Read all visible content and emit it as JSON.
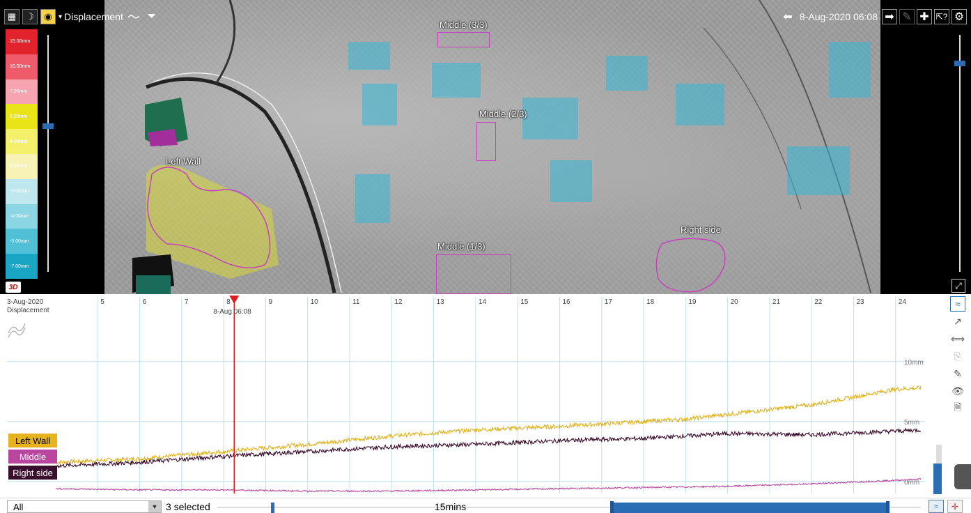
{
  "toolbar": {
    "layer_name": "Displacement",
    "dropdown_glyph": "▾",
    "date": "8-Aug-2020 06:08"
  },
  "legend": {
    "items": [
      {
        "label": "15.00mm",
        "color": "#e3232c"
      },
      {
        "label": "10.00mm",
        "color": "#f05b6b"
      },
      {
        "label": "7.00mm",
        "color": "#f7a3b0"
      },
      {
        "label": "5.00mm",
        "color": "#e9e418"
      },
      {
        "label": "4.00mm",
        "color": "#f4f06a"
      },
      {
        "label": "3.00mm",
        "color": "#f6f3b4"
      },
      {
        "label": "-3.00mm",
        "color": "#bfe7ef"
      },
      {
        "label": "-4.00mm",
        "color": "#8bd6e4"
      },
      {
        "label": "-5.00mm",
        "color": "#4fc0d6"
      },
      {
        "label": "-7.00mm",
        "color": "#19a5c3"
      }
    ]
  },
  "badge_3d": "3D",
  "regions": {
    "middle3": "Middle (3/3)",
    "middle2": "Middle (2/3)",
    "middle1": "Middle (1/3)",
    "left_wall": "Left Wall",
    "right_side": "Right side"
  },
  "chart_data": {
    "type": "line",
    "start_label": "3-Aug-2020",
    "quantity_label": "Displacement",
    "x_ticks": [
      "5",
      "6",
      "7",
      "8",
      "9",
      "10",
      "11",
      "12",
      "13",
      "14",
      "15",
      "16",
      "17",
      "18",
      "19",
      "20",
      "21",
      "22",
      "23",
      "24"
    ],
    "cursor_label": "8-Aug 06:08",
    "y_ticks": [
      "10mm",
      "5mm",
      "0mm"
    ],
    "ylim": [
      -1,
      14
    ],
    "x_range_days": [
      4.0,
      24.7
    ],
    "cursor_day": 8.25,
    "series": [
      {
        "name": "Left Wall",
        "color": "#e0b21b",
        "points": [
          [
            4,
            1.6
          ],
          [
            6,
            1.9
          ],
          [
            8,
            2.5
          ],
          [
            10,
            3.1
          ],
          [
            12,
            3.8
          ],
          [
            14,
            4.3
          ],
          [
            16,
            4.6
          ],
          [
            18,
            5.0
          ],
          [
            19,
            5.2
          ],
          [
            20,
            5.6
          ],
          [
            22,
            6.4
          ],
          [
            24,
            7.7
          ],
          [
            24.6,
            7.8
          ]
        ]
      },
      {
        "name": "Right side",
        "color": "#3a0f2e",
        "points": [
          [
            4,
            1.3
          ],
          [
            6,
            1.6
          ],
          [
            8,
            2.1
          ],
          [
            10,
            2.5
          ],
          [
            12,
            2.9
          ],
          [
            14,
            3.1
          ],
          [
            16,
            3.4
          ],
          [
            18,
            3.6
          ],
          [
            19,
            3.8
          ],
          [
            20,
            4.0
          ],
          [
            22,
            3.9
          ],
          [
            24,
            4.2
          ],
          [
            24.6,
            4.3
          ]
        ]
      },
      {
        "name": "Middle",
        "color": "#b9459e",
        "points": [
          [
            4,
            -0.6
          ],
          [
            6,
            -0.7
          ],
          [
            8,
            -0.7
          ],
          [
            10,
            -0.8
          ],
          [
            12,
            -0.8
          ],
          [
            14,
            -0.7
          ],
          [
            16,
            -0.6
          ],
          [
            18,
            -0.5
          ],
          [
            20,
            -0.4
          ],
          [
            22,
            -0.2
          ],
          [
            24,
            0.1
          ],
          [
            24.6,
            0.2
          ]
        ]
      }
    ]
  },
  "series_tags": {
    "left_wall": {
      "label": "Left Wall",
      "bg": "#e6b31d",
      "fg": "#000000"
    },
    "middle": {
      "label": "Middle",
      "bg": "#b9459e",
      "fg": "#ffffff"
    },
    "right_side": {
      "label": "Right side",
      "bg": "#3a0f2e",
      "fg": "#ffffff"
    }
  },
  "bottom": {
    "filter_value": "All",
    "selected_count": "3 selected",
    "range_label": "15mins"
  }
}
